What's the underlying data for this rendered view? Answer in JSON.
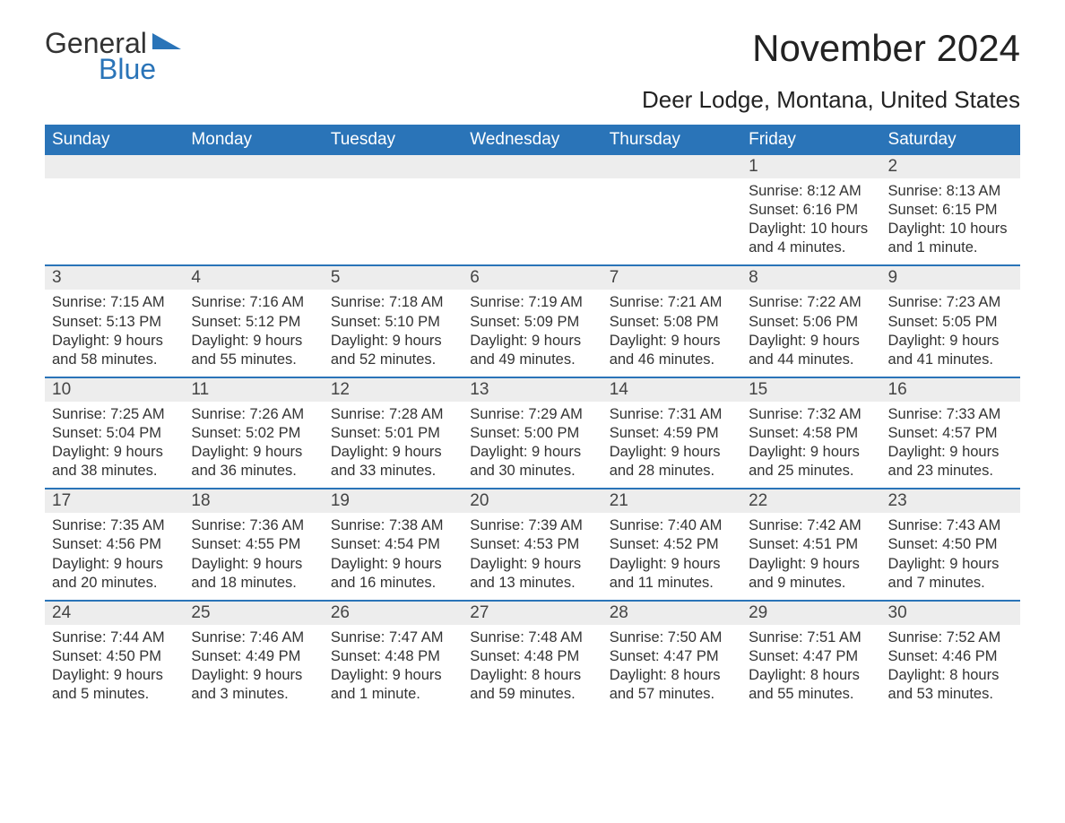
{
  "brand": {
    "part1": "General",
    "part2": "Blue"
  },
  "title": "November 2024",
  "location": "Deer Lodge, Montana, United States",
  "colors": {
    "accent": "#2a74b8",
    "header_text": "#ffffff",
    "daybar_bg": "#ededed",
    "body_text": "#333333",
    "background": "#ffffff"
  },
  "typography": {
    "title_fontsize": 42,
    "location_fontsize": 26,
    "dayheader_fontsize": 19,
    "daynum_fontsize": 19,
    "body_fontsize": 16.5
  },
  "day_headers": [
    "Sunday",
    "Monday",
    "Tuesday",
    "Wednesday",
    "Thursday",
    "Friday",
    "Saturday"
  ],
  "weeks": [
    [
      {
        "empty": true
      },
      {
        "empty": true
      },
      {
        "empty": true
      },
      {
        "empty": true
      },
      {
        "empty": true
      },
      {
        "day": "1",
        "sunrise": "Sunrise: 8:12 AM",
        "sunset": "Sunset: 6:16 PM",
        "daylight": "Daylight: 10 hours and 4 minutes."
      },
      {
        "day": "2",
        "sunrise": "Sunrise: 8:13 AM",
        "sunset": "Sunset: 6:15 PM",
        "daylight": "Daylight: 10 hours and 1 minute."
      }
    ],
    [
      {
        "day": "3",
        "sunrise": "Sunrise: 7:15 AM",
        "sunset": "Sunset: 5:13 PM",
        "daylight": "Daylight: 9 hours and 58 minutes."
      },
      {
        "day": "4",
        "sunrise": "Sunrise: 7:16 AM",
        "sunset": "Sunset: 5:12 PM",
        "daylight": "Daylight: 9 hours and 55 minutes."
      },
      {
        "day": "5",
        "sunrise": "Sunrise: 7:18 AM",
        "sunset": "Sunset: 5:10 PM",
        "daylight": "Daylight: 9 hours and 52 minutes."
      },
      {
        "day": "6",
        "sunrise": "Sunrise: 7:19 AM",
        "sunset": "Sunset: 5:09 PM",
        "daylight": "Daylight: 9 hours and 49 minutes."
      },
      {
        "day": "7",
        "sunrise": "Sunrise: 7:21 AM",
        "sunset": "Sunset: 5:08 PM",
        "daylight": "Daylight: 9 hours and 46 minutes."
      },
      {
        "day": "8",
        "sunrise": "Sunrise: 7:22 AM",
        "sunset": "Sunset: 5:06 PM",
        "daylight": "Daylight: 9 hours and 44 minutes."
      },
      {
        "day": "9",
        "sunrise": "Sunrise: 7:23 AM",
        "sunset": "Sunset: 5:05 PM",
        "daylight": "Daylight: 9 hours and 41 minutes."
      }
    ],
    [
      {
        "day": "10",
        "sunrise": "Sunrise: 7:25 AM",
        "sunset": "Sunset: 5:04 PM",
        "daylight": "Daylight: 9 hours and 38 minutes."
      },
      {
        "day": "11",
        "sunrise": "Sunrise: 7:26 AM",
        "sunset": "Sunset: 5:02 PM",
        "daylight": "Daylight: 9 hours and 36 minutes."
      },
      {
        "day": "12",
        "sunrise": "Sunrise: 7:28 AM",
        "sunset": "Sunset: 5:01 PM",
        "daylight": "Daylight: 9 hours and 33 minutes."
      },
      {
        "day": "13",
        "sunrise": "Sunrise: 7:29 AM",
        "sunset": "Sunset: 5:00 PM",
        "daylight": "Daylight: 9 hours and 30 minutes."
      },
      {
        "day": "14",
        "sunrise": "Sunrise: 7:31 AM",
        "sunset": "Sunset: 4:59 PM",
        "daylight": "Daylight: 9 hours and 28 minutes."
      },
      {
        "day": "15",
        "sunrise": "Sunrise: 7:32 AM",
        "sunset": "Sunset: 4:58 PM",
        "daylight": "Daylight: 9 hours and 25 minutes."
      },
      {
        "day": "16",
        "sunrise": "Sunrise: 7:33 AM",
        "sunset": "Sunset: 4:57 PM",
        "daylight": "Daylight: 9 hours and 23 minutes."
      }
    ],
    [
      {
        "day": "17",
        "sunrise": "Sunrise: 7:35 AM",
        "sunset": "Sunset: 4:56 PM",
        "daylight": "Daylight: 9 hours and 20 minutes."
      },
      {
        "day": "18",
        "sunrise": "Sunrise: 7:36 AM",
        "sunset": "Sunset: 4:55 PM",
        "daylight": "Daylight: 9 hours and 18 minutes."
      },
      {
        "day": "19",
        "sunrise": "Sunrise: 7:38 AM",
        "sunset": "Sunset: 4:54 PM",
        "daylight": "Daylight: 9 hours and 16 minutes."
      },
      {
        "day": "20",
        "sunrise": "Sunrise: 7:39 AM",
        "sunset": "Sunset: 4:53 PM",
        "daylight": "Daylight: 9 hours and 13 minutes."
      },
      {
        "day": "21",
        "sunrise": "Sunrise: 7:40 AM",
        "sunset": "Sunset: 4:52 PM",
        "daylight": "Daylight: 9 hours and 11 minutes."
      },
      {
        "day": "22",
        "sunrise": "Sunrise: 7:42 AM",
        "sunset": "Sunset: 4:51 PM",
        "daylight": "Daylight: 9 hours and 9 minutes."
      },
      {
        "day": "23",
        "sunrise": "Sunrise: 7:43 AM",
        "sunset": "Sunset: 4:50 PM",
        "daylight": "Daylight: 9 hours and 7 minutes."
      }
    ],
    [
      {
        "day": "24",
        "sunrise": "Sunrise: 7:44 AM",
        "sunset": "Sunset: 4:50 PM",
        "daylight": "Daylight: 9 hours and 5 minutes."
      },
      {
        "day": "25",
        "sunrise": "Sunrise: 7:46 AM",
        "sunset": "Sunset: 4:49 PM",
        "daylight": "Daylight: 9 hours and 3 minutes."
      },
      {
        "day": "26",
        "sunrise": "Sunrise: 7:47 AM",
        "sunset": "Sunset: 4:48 PM",
        "daylight": "Daylight: 9 hours and 1 minute."
      },
      {
        "day": "27",
        "sunrise": "Sunrise: 7:48 AM",
        "sunset": "Sunset: 4:48 PM",
        "daylight": "Daylight: 8 hours and 59 minutes."
      },
      {
        "day": "28",
        "sunrise": "Sunrise: 7:50 AM",
        "sunset": "Sunset: 4:47 PM",
        "daylight": "Daylight: 8 hours and 57 minutes."
      },
      {
        "day": "29",
        "sunrise": "Sunrise: 7:51 AM",
        "sunset": "Sunset: 4:47 PM",
        "daylight": "Daylight: 8 hours and 55 minutes."
      },
      {
        "day": "30",
        "sunrise": "Sunrise: 7:52 AM",
        "sunset": "Sunset: 4:46 PM",
        "daylight": "Daylight: 8 hours and 53 minutes."
      }
    ]
  ]
}
